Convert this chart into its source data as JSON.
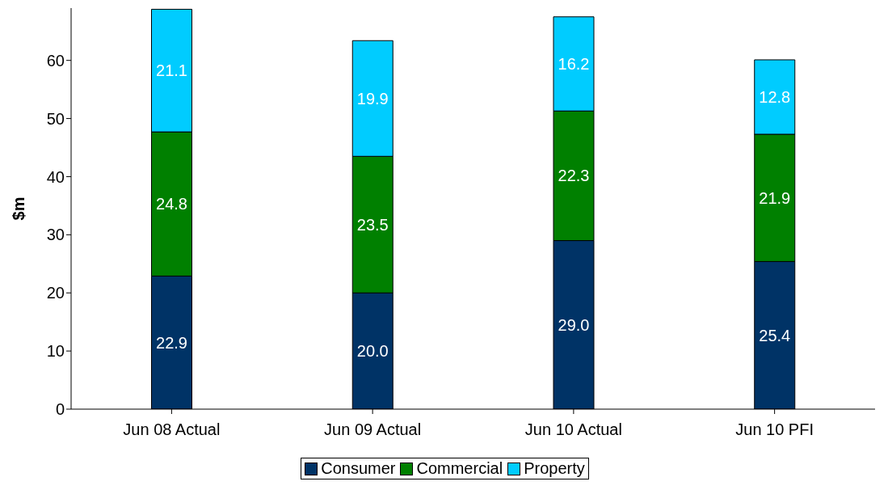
{
  "chart_data": {
    "type": "bar",
    "stacked": true,
    "ylabel": "$m",
    "categories": [
      "Jun 08 Actual",
      "Jun 09 Actual",
      "Jun 10 Actual",
      "Jun 10 PFI"
    ],
    "series": [
      {
        "name": "Consumer",
        "color": "#003366",
        "values": [
          22.9,
          20.0,
          29.0,
          25.4
        ],
        "value_labels": [
          "22.9",
          "20.0",
          "29.0",
          "25.4"
        ]
      },
      {
        "name": "Commercial",
        "color": "#008000",
        "values": [
          24.8,
          23.5,
          22.3,
          21.9
        ],
        "value_labels": [
          "24.8",
          "23.5",
          "22.3",
          "21.9"
        ]
      },
      {
        "name": "Property",
        "color": "#00ccff",
        "values": [
          21.1,
          19.9,
          16.2,
          12.8
        ],
        "value_labels": [
          "21.1",
          "19.9",
          "16.2",
          "12.8"
        ]
      }
    ],
    "ylim": [
      0,
      69
    ],
    "yticks": [
      0,
      10,
      20,
      30,
      40,
      50,
      60
    ],
    "grid": false,
    "legend": "bottom"
  }
}
